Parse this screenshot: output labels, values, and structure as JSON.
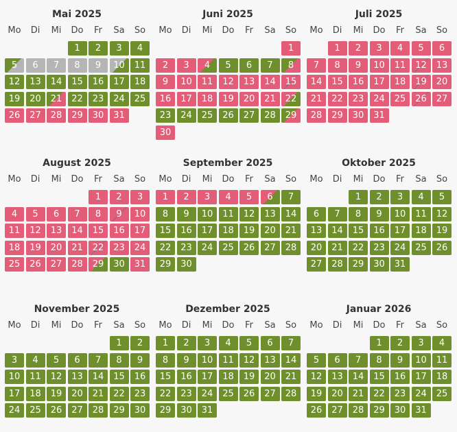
{
  "weekday_labels": [
    "Mo",
    "Di",
    "Mi",
    "Do",
    "Fr",
    "Sa",
    "So"
  ],
  "months": [
    {
      "title": "Mai 2025",
      "start_dow": 3,
      "days": 31,
      "states": {
        "5": "toblk",
        "6": "blocked",
        "7": "blocked",
        "8": "blocked",
        "9": "blocked",
        "10": "fromblk",
        "21": "arr",
        "26": "booked",
        "27": "booked",
        "28": "booked",
        "29": "booked",
        "30": "booked",
        "31": "booked"
      },
      "default": "free"
    },
    {
      "title": "Juni 2025",
      "start_dow": 6,
      "days": 30,
      "states": {
        "1": "booked",
        "2": "booked",
        "3": "booked",
        "4": "dep",
        "8": "arr",
        "9": "booked",
        "10": "booked",
        "11": "booked",
        "12": "booked",
        "13": "booked",
        "14": "booked",
        "15": "chg",
        "16": "booked",
        "17": "booked",
        "18": "booked",
        "19": "booked",
        "20": "booked",
        "21": "booked",
        "22": "dep",
        "29": "arr",
        "30": "booked"
      },
      "default": "free"
    },
    {
      "title": "Juli 2025",
      "start_dow": 1,
      "days": 31,
      "states": {
        "12": "chg",
        "19": "chg",
        "26": "chg"
      },
      "default": "booked"
    },
    {
      "title": "August 2025",
      "start_dow": 4,
      "days": 31,
      "states": {
        "9": "chg",
        "22": "chg",
        "29": "dep",
        "30": "free",
        "31": "booked"
      },
      "default": "booked"
    },
    {
      "title": "September 2025",
      "start_dow": 0,
      "days": 30,
      "states": {
        "1": "booked",
        "2": "booked",
        "3": "booked",
        "4": "booked",
        "5": "booked",
        "6": "dep"
      },
      "default": "free"
    },
    {
      "title": "Oktober 2025",
      "start_dow": 2,
      "days": 31,
      "states": {},
      "default": "free"
    },
    {
      "title": "November 2025",
      "start_dow": 5,
      "days": 30,
      "states": {},
      "default": "free"
    },
    {
      "title": "Dezember 2025",
      "start_dow": 0,
      "days": 31,
      "states": {},
      "default": "free"
    },
    {
      "title": "Januar 2026",
      "start_dow": 3,
      "days": 31,
      "states": {},
      "default": "free"
    }
  ]
}
